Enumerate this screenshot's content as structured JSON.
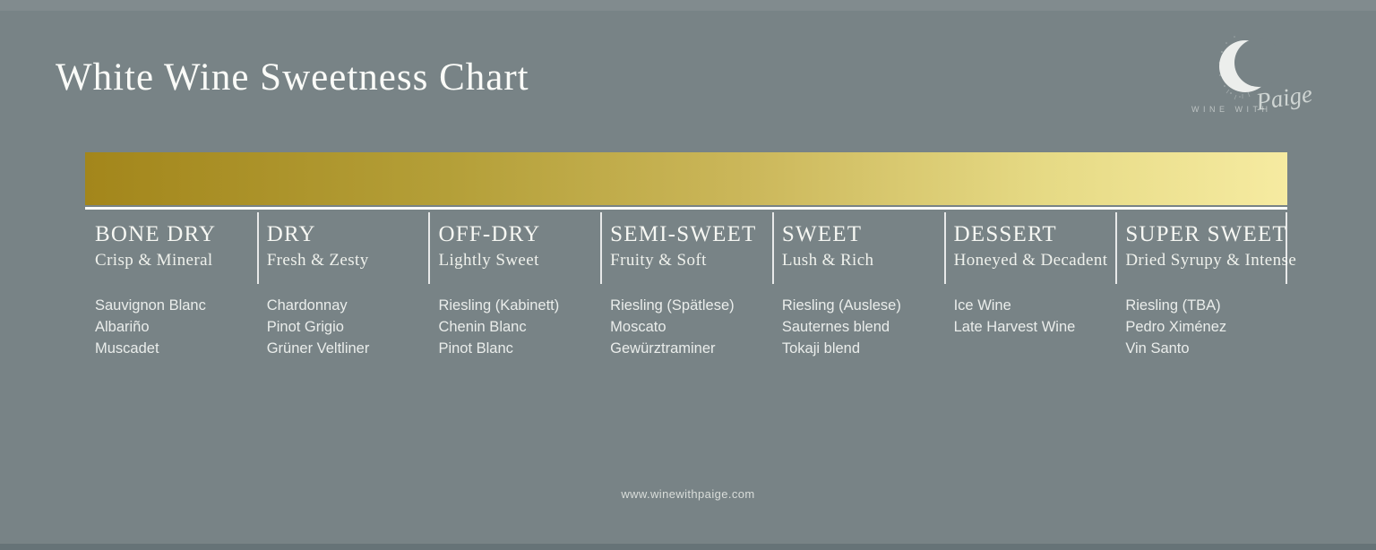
{
  "page": {
    "title": "White Wine Sweetness Chart",
    "footer_url": "www.winewithpaige.com"
  },
  "brand": {
    "wordmark": "WINE WITH",
    "script_name": "Paige",
    "logo_icon": "crescent-moon-icon"
  },
  "colors": {
    "background": "#788386",
    "title_text": "#fafbf8",
    "gradient_start": "#A3861B",
    "gradient_end": "#F6EBA1",
    "divider_white": "#FBFBF8"
  },
  "chart_data": {
    "type": "table",
    "title": "White Wine Sweetness Chart",
    "layout": "horizontal sweetness scale, 7 categories from dry (left) to sweet (right), gradient bar above column headers",
    "gradient_bar": {
      "direction": "left-to-right",
      "stops": [
        "#A3861B",
        "#B49F38",
        "#CBB75A",
        "#E6DA85",
        "#F6EBA1"
      ],
      "positions": [
        0,
        30,
        55,
        80,
        100
      ]
    },
    "columns": [
      {
        "label": "BONE DRY",
        "descriptor": "Crisp & Mineral",
        "wines": [
          "Sauvignon Blanc",
          "Albariño",
          "Muscadet"
        ]
      },
      {
        "label": "DRY",
        "descriptor": "Fresh & Zesty",
        "wines": [
          "Chardonnay",
          "Pinot Grigio",
          "Grüner Veltliner"
        ]
      },
      {
        "label": "OFF-DRY",
        "descriptor": "Lightly Sweet",
        "wines": [
          "Riesling (Kabinett)",
          "Chenin Blanc",
          "Pinot Blanc"
        ]
      },
      {
        "label": "SEMI-SWEET",
        "descriptor": "Fruity & Soft",
        "wines": [
          "Riesling (Spätlese)",
          "Moscato",
          "Gewürztraminer"
        ]
      },
      {
        "label": "SWEET",
        "descriptor": "Lush & Rich",
        "wines": [
          "Riesling (Auslese)",
          "Sauternes blend",
          "Tokaji blend"
        ]
      },
      {
        "label": "DESSERT",
        "descriptor": "Honeyed & Decadent",
        "wines": [
          "Ice Wine",
          "Late Harvest Wine"
        ]
      },
      {
        "label": "SUPER SWEET",
        "descriptor": "Dried Syrupy & Intense",
        "wines": [
          "Riesling (TBA)",
          "Pedro Ximénez",
          "Vin Santo"
        ]
      }
    ]
  }
}
